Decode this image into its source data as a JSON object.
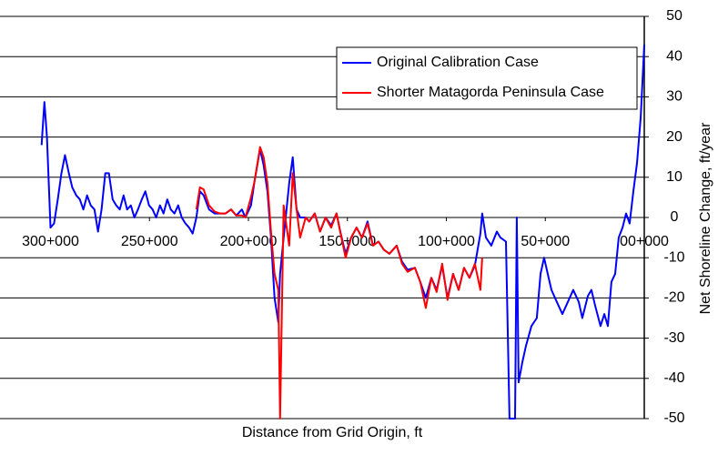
{
  "chart_data": {
    "type": "line",
    "x_label": "Distance from Grid Origin, ft",
    "y_label": "Net Shoreline Change, ft/year",
    "xlim": [
      320000,
      0
    ],
    "ylim": [
      -50,
      50
    ],
    "xticks": [
      {
        "value": 300000,
        "label": "300+000"
      },
      {
        "value": 250000,
        "label": "250+000"
      },
      {
        "value": 200000,
        "label": "200+000"
      },
      {
        "value": 150000,
        "label": "150+000"
      },
      {
        "value": 100000,
        "label": "100+000"
      },
      {
        "value": 50000,
        "label": "50+000"
      },
      {
        "value": 0,
        "label": "00+000"
      }
    ],
    "yticks": [
      -50,
      -40,
      -30,
      -20,
      -10,
      0,
      10,
      20,
      30,
      40,
      50
    ],
    "grid": true,
    "legend": "upper right",
    "series": [
      {
        "name": "Original Calibration Case",
        "color": "#0000ff",
        "x": [
          304500,
          303100,
          301800,
          300000,
          298200,
          296300,
          294500,
          292700,
          290700,
          289000,
          287000,
          285200,
          283400,
          281500,
          279700,
          277800,
          276000,
          274200,
          272300,
          270500,
          268600,
          266800,
          265000,
          263100,
          261300,
          259400,
          257600,
          255800,
          253900,
          252100,
          250200,
          248400,
          246600,
          244700,
          242900,
          241000,
          239200,
          237400,
          235500,
          233700,
          231800,
          230000,
          228200,
          226300,
          224500,
          222600,
          219900,
          217100,
          214400,
          211600,
          208800,
          206100,
          203300,
          201500,
          198700,
          196900,
          194100,
          192300,
          190400,
          188600,
          186800,
          184900,
          184000,
          182200,
          179400,
          177600,
          175700,
          173900,
          171100,
          169300,
          166500,
          163800,
          161000,
          158200,
          155500,
          153600,
          150900,
          148100,
          145400,
          142600,
          139800,
          137100,
          134300,
          131600,
          128800,
          125100,
          122400,
          119600,
          115900,
          113200,
          110400,
          107600,
          104900,
          102100,
          99400,
          96600,
          93800,
          91100,
          88300,
          85600,
          82800,
          81900,
          80000,
          77300,
          74500,
          72700,
          69900,
          68100,
          65300,
          64400,
          63500,
          61600,
          59800,
          57000,
          54300,
          52400,
          50600,
          48800,
          46900,
          44200,
          41400,
          38600,
          35900,
          33100,
          31300,
          28500,
          26700,
          24800,
          22100,
          20200,
          18400,
          16600,
          14700,
          12900,
          11000,
          9200,
          7400,
          5500,
          3700,
          1800,
          0
        ],
        "values": [
          18,
          28.7,
          20,
          -2.5,
          -1.5,
          4.5,
          11,
          15.5,
          11,
          7.5,
          5.5,
          4.5,
          2,
          5.5,
          3,
          2,
          -3.5,
          2,
          11,
          11,
          4.5,
          3,
          2,
          5.5,
          2,
          3,
          0,
          2,
          4.5,
          6.5,
          3,
          2,
          0,
          3,
          1,
          4.5,
          2,
          1,
          3,
          0,
          -1.5,
          -2.5,
          -4,
          0,
          6.5,
          5.5,
          2,
          1,
          1,
          1,
          2,
          0.5,
          2,
          0,
          3,
          9,
          17,
          13,
          6.5,
          -5,
          -20,
          -26,
          -14,
          -5,
          8.5,
          15,
          2,
          0,
          0,
          -1,
          1,
          -3.5,
          0,
          -2,
          1,
          -3.5,
          -9,
          -5,
          -2.5,
          -5,
          -1,
          -7,
          -6,
          -8,
          -9,
          -7,
          -11,
          -13,
          -12.5,
          -16,
          -20,
          -15,
          -18,
          -12,
          -20,
          -14,
          -18,
          -12.5,
          -15,
          -12,
          -4,
          1,
          -5,
          -7,
          -3.5,
          -5,
          -6,
          -50,
          -50,
          0,
          -41,
          -36,
          -32,
          -27,
          -25,
          -14,
          -10,
          -14,
          -18,
          -21,
          -24,
          -21,
          -18,
          -21,
          -25,
          -19.5,
          -18,
          -22,
          -27,
          -24,
          -27,
          -16,
          -14,
          -5,
          -2.5,
          1,
          -1.5,
          6.5,
          13.5,
          25,
          43
        ]
      },
      {
        "name": "Shorter Matagorda Peninsula Case",
        "color": "#ff0000",
        "x": [
          226300,
          224500,
          222600,
          219900,
          217100,
          214400,
          211600,
          208800,
          206100,
          203300,
          201500,
          198700,
          196900,
          194100,
          192300,
          190400,
          188600,
          186800,
          184900,
          184000,
          182200,
          179400,
          177600,
          175700,
          173900,
          171100,
          169300,
          166500,
          163800,
          161000,
          158200,
          155500,
          153600,
          150900,
          148100,
          145400,
          142600,
          139800,
          137100,
          134300,
          131600,
          128800,
          125100,
          122400,
          119600,
          115900,
          113200,
          110400,
          107600,
          104900,
          102100,
          99400,
          96600,
          93800,
          91100,
          88300,
          85600,
          82800,
          81900
        ],
        "values": [
          2,
          7.5,
          7,
          3,
          1.5,
          1,
          1,
          2,
          0.5,
          0.5,
          0,
          5,
          9,
          17.5,
          15,
          8.5,
          -3.5,
          -14,
          -18,
          -50,
          3,
          -7,
          11,
          2,
          -5,
          0,
          -1,
          1,
          -3.5,
          0,
          -2.5,
          1,
          -3.5,
          -10,
          -5,
          -2.5,
          -5,
          -1.5,
          -7,
          -6,
          -8,
          -9,
          -7,
          -11.5,
          -13.5,
          -12.5,
          -16,
          -22.5,
          -15,
          -18.5,
          -11.5,
          -20.5,
          -14,
          -18,
          -12.5,
          -15,
          -11.5,
          -18,
          -10
        ]
      }
    ]
  }
}
